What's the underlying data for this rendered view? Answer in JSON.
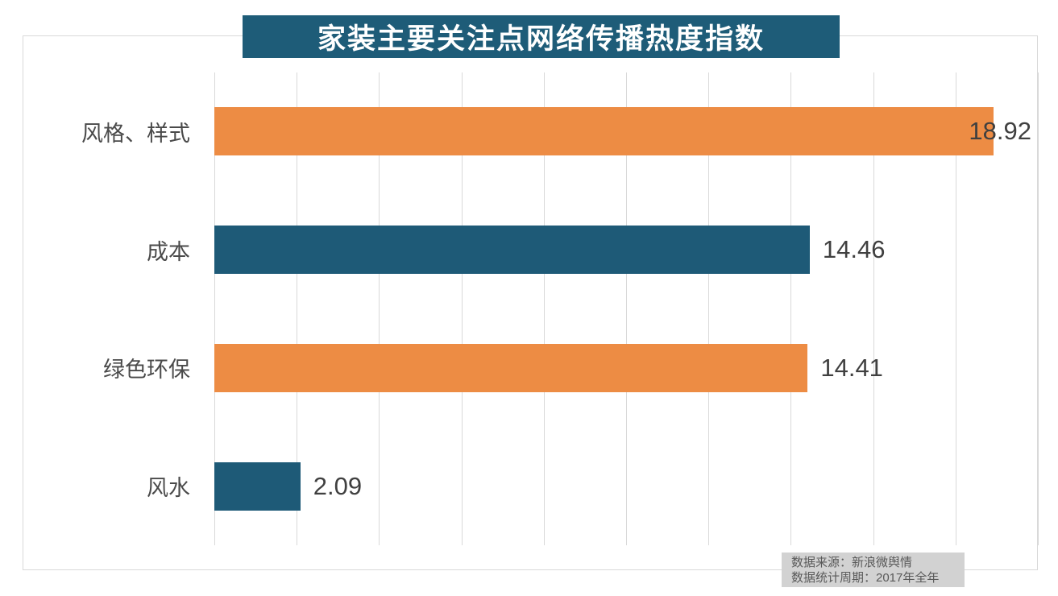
{
  "chart_data": {
    "type": "bar",
    "orientation": "horizontal",
    "title": "家装主要关注点网络传播热度指数",
    "categories": [
      "风格、样式",
      "成本",
      "绿色环保",
      "风水"
    ],
    "values": [
      18.92,
      14.46,
      14.41,
      2.09
    ],
    "value_labels": [
      "18.92",
      "14.46",
      "14.41",
      "2.09"
    ],
    "bar_colors": [
      "#ED8C44",
      "#1E5A77",
      "#ED8C44",
      "#1E5A77"
    ],
    "xlim": [
      0,
      20
    ],
    "gridline_interval": 2,
    "grid": "vertical-lines-only",
    "legend": "none",
    "xlabel": "",
    "ylabel": ""
  },
  "title_banner": {
    "background": "#1E5C78",
    "text_color": "#ffffff"
  },
  "footer": {
    "source_line": "数据来源：新浪微舆情",
    "period_line": "数据统计周期：2017年全年",
    "background": "#d2d2d2",
    "text_color": "#595959"
  },
  "colors": {
    "gridline": "#d9d9d9",
    "frame_border": "#d9d9d9",
    "category_label": "#4a4a4a",
    "value_label": "#404040",
    "page_background": "#ffffff"
  }
}
